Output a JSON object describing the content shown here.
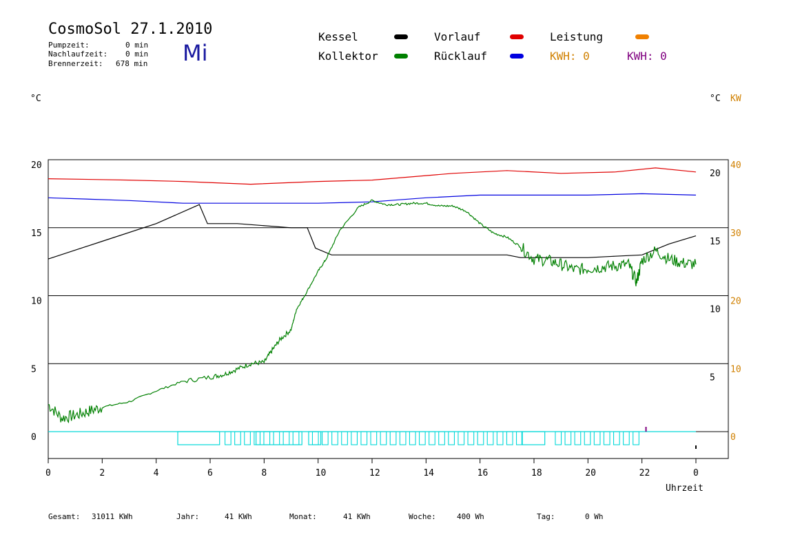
{
  "header": {
    "title": "CosmoSol 27.1.2010",
    "day": "Mi",
    "pump_label": "Pumpzeit:",
    "pump_value": "0 min",
    "nachlauf_label": "Nachlaufzeit:",
    "nachlauf_value": "0 min",
    "brenner_label": "Brennerzeit:",
    "brenner_value": "678 min"
  },
  "legend": {
    "kessel": "Kessel",
    "kollektor": "Kollektor",
    "vorlauf": "Vorlauf",
    "ruecklauf": "Rücklauf",
    "leistung": "Leistung",
    "kwh1": "KWH: 0",
    "kwh2": "KWH: 0"
  },
  "colors": {
    "kessel": "#000000",
    "kollektor": "#008000",
    "vorlauf": "#e00000",
    "ruecklauf": "#0000e0",
    "leistung": "#f08000",
    "kwh2": "#800080",
    "pump": "#00d8d8",
    "orange_text": "#d08000"
  },
  "axes": {
    "left_unit": "°C",
    "right_unit": "°C",
    "right_unit2": "KW",
    "xlabel": "Uhrzeit"
  },
  "footer": {
    "gesamt_label": "Gesamt:",
    "gesamt_value": "31011 KWh",
    "jahr_label": "Jahr:",
    "jahr_value": "41 KWh",
    "monat_label": "Monat:",
    "monat_value": "41 KWh",
    "woche_label": "Woche:",
    "woche_value": "400 Wh",
    "tag_label": "Tag:",
    "tag_value": "0 Wh"
  },
  "chart_data": {
    "type": "line",
    "x_ticks": [
      "0",
      "2",
      "4",
      "6",
      "8",
      "10",
      "12",
      "14",
      "16",
      "18",
      "20",
      "22",
      "0"
    ],
    "y_ticks_left": [
      "20",
      "15",
      "10",
      "5",
      "0"
    ],
    "y_ticks_right_temp": [
      "20",
      "15",
      "10",
      "5"
    ],
    "y_ticks_right_kw": [
      "40",
      "30",
      "20",
      "10",
      "0"
    ],
    "xlim": [
      0,
      24
    ],
    "ylim": [
      -2,
      20
    ],
    "grid": "horizontal",
    "series": [
      {
        "name": "Vorlauf",
        "color": "#e00000",
        "x": [
          0,
          3,
          5,
          7.5,
          10,
          12,
          15,
          17,
          19,
          21,
          22.5,
          24
        ],
        "y": [
          18.6,
          18.5,
          18.4,
          18.2,
          18.4,
          18.5,
          19,
          19.2,
          19,
          19.1,
          19.4,
          19.1
        ]
      },
      {
        "name": "Rücklauf",
        "color": "#0000e0",
        "x": [
          0,
          3,
          5,
          7,
          10,
          12,
          14,
          16,
          18,
          20,
          22,
          24
        ],
        "y": [
          17.2,
          17,
          16.8,
          16.8,
          16.8,
          16.9,
          17.2,
          17.4,
          17.4,
          17.4,
          17.5,
          17.4
        ]
      },
      {
        "name": "Kessel",
        "color": "#000000",
        "x": [
          0,
          2,
          4,
          5.6,
          5.9,
          7,
          9,
          9.6,
          9.9,
          10.5,
          12,
          15,
          17,
          17.5,
          19,
          20,
          21,
          22,
          23,
          24
        ],
        "y": [
          12.7,
          14,
          15.3,
          16.7,
          15.3,
          15.3,
          15,
          15,
          13.5,
          13,
          13,
          13,
          13,
          12.8,
          12.8,
          12.8,
          12.9,
          13,
          13.8,
          14.4
        ]
      },
      {
        "name": "Kollektor",
        "color": "#008000",
        "x": [
          0,
          0.5,
          1,
          1.5,
          2,
          3,
          4,
          5,
          6,
          6.5,
          7,
          7.5,
          8,
          8.3,
          8.6,
          9,
          9.2,
          9.5,
          10,
          10.3,
          10.8,
          11.5,
          12,
          12.5,
          13,
          13.5,
          14,
          14.5,
          15,
          15.5,
          16,
          16.5,
          17,
          17.5,
          18,
          18.5,
          19,
          19.5,
          20,
          20.5,
          21,
          21.5,
          21.8,
          22,
          22.5,
          23,
          23.5,
          24
        ],
        "y": [
          2,
          1,
          1.2,
          1.5,
          1.8,
          2.2,
          3,
          3.7,
          4,
          4.2,
          4.6,
          5,
          5.1,
          6,
          6.8,
          7.5,
          9,
          10,
          11.8,
          12.7,
          14.8,
          16.5,
          17,
          16.7,
          16.7,
          16.8,
          16.8,
          16.6,
          16.6,
          16.2,
          15.3,
          14.6,
          14.3,
          13.6,
          12.7,
          12.6,
          12.3,
          11.9,
          12,
          12.1,
          12.2,
          12.3,
          11,
          12.6,
          13.3,
          12.7,
          12.4,
          12.3
        ]
      },
      {
        "name": "Pumpe",
        "color": "#00d8d8",
        "x": [
          0,
          4.8,
          4.8,
          24
        ],
        "y": [
          0,
          0,
          0,
          0
        ]
      }
    ]
  }
}
